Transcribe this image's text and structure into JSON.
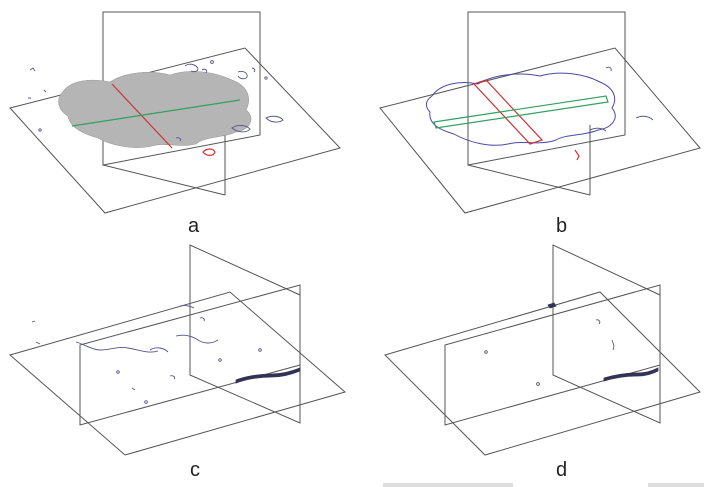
{
  "panels": [
    {
      "label": "a"
    },
    {
      "label": "b"
    },
    {
      "label": "c"
    },
    {
      "label": "d"
    }
  ],
  "colors": {
    "plane_lines": "#555555",
    "segmented_region": "#b5b5b5",
    "contour": "#4a4aa8",
    "slice_red": "#cc3333",
    "slice_green": "#33a060"
  }
}
